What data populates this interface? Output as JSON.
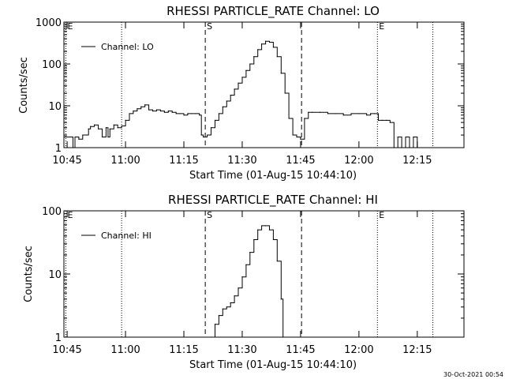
{
  "footer": {
    "timestamp": "30-Oct-2021 00:54"
  },
  "chart_data": [
    {
      "type": "line",
      "title": "RHESSI PARTICLE_RATE Channel: LO",
      "xlabel": "Start Time (01-Aug-15 10:44:10)",
      "ylabel": "Counts/sec",
      "y_scale": "log",
      "ylim": [
        1,
        1000
      ],
      "y_ticks": [
        1,
        10,
        100,
        1000
      ],
      "y_ticklabels": [
        "1",
        "10",
        "100",
        "1000"
      ],
      "xlim": [
        "10:44:10",
        "12:27:00"
      ],
      "x_ticks": [
        "10:45",
        "11:00",
        "11:15",
        "11:30",
        "11:45",
        "12:00",
        "12:15"
      ],
      "legend": {
        "label": "Channel: LO",
        "position": "top-left"
      },
      "markers": [
        {
          "label": "E",
          "time": "10:44:40",
          "style": "dotted"
        },
        {
          "label": "",
          "time": "10:59:00",
          "style": "dotted"
        },
        {
          "label": "S",
          "time": "11:20:30",
          "style": "dashed"
        },
        {
          "label": "",
          "time": "11:45:15",
          "style": "dashed"
        },
        {
          "label": "E",
          "time": "12:04:45",
          "style": "dotted"
        },
        {
          "label": "",
          "time": "12:19:00",
          "style": "dotted"
        }
      ],
      "series": [
        {
          "name": "Channel: LO",
          "x": [
            "10:44:10",
            "10:45:00",
            "10:46:00",
            "10:46:30",
            "10:47:00",
            "10:48:00",
            "10:49:00",
            "10:50:00",
            "10:50:30",
            "10:51:00",
            "10:52:00",
            "10:53:00",
            "10:54:00",
            "10:55:00",
            "10:55:30",
            "10:56:00",
            "10:57:00",
            "10:58:00",
            "10:59:00",
            "11:00:00",
            "11:01:00",
            "11:02:00",
            "11:03:00",
            "11:04:00",
            "11:05:00",
            "11:06:00",
            "11:07:00",
            "11:08:00",
            "11:09:00",
            "11:10:00",
            "11:11:00",
            "11:12:00",
            "11:13:00",
            "11:14:00",
            "11:15:00",
            "11:16:00",
            "11:17:00",
            "11:18:00",
            "11:19:00",
            "11:19:30",
            "11:20:00",
            "11:21:00",
            "11:22:00",
            "11:23:00",
            "11:24:00",
            "11:25:00",
            "11:26:00",
            "11:27:00",
            "11:28:00",
            "11:29:00",
            "11:30:00",
            "11:31:00",
            "11:32:00",
            "11:33:00",
            "11:34:00",
            "11:35:00",
            "11:36:00",
            "11:37:00",
            "11:38:00",
            "11:39:00",
            "11:40:00",
            "11:41:00",
            "11:42:00",
            "11:43:00",
            "11:44:00",
            "11:45:00",
            "11:46:00",
            "11:47:00",
            "11:48:00",
            "11:50:00",
            "11:52:00",
            "11:54:00",
            "11:56:00",
            "11:58:00",
            "12:00:00",
            "12:02:00",
            "12:03:00",
            "12:04:00",
            "12:05:00",
            "12:06:00",
            "12:07:00",
            "12:08:00",
            "12:09:00",
            "12:10:00",
            "12:11:00",
            "12:12:00",
            "12:13:00",
            "12:14:00",
            "12:15:00"
          ],
          "y": [
            1.8,
            1.8,
            1.8,
            1.0,
            1.8,
            1.6,
            2.0,
            2.0,
            2.8,
            3.2,
            3.5,
            2.8,
            1.8,
            3.0,
            1.8,
            2.8,
            3.5,
            3.0,
            3.3,
            4.5,
            6.5,
            7.5,
            8.5,
            9.5,
            10.5,
            8.0,
            7.5,
            8.0,
            7.5,
            7.0,
            7.5,
            7.0,
            6.5,
            6.5,
            6.0,
            6.5,
            6.5,
            6.5,
            6.0,
            2.0,
            1.8,
            2.0,
            3.0,
            4.5,
            6.5,
            9.5,
            13,
            18,
            25,
            35,
            48,
            70,
            100,
            150,
            220,
            300,
            350,
            330,
            250,
            150,
            60,
            20,
            5,
            2.0,
            1.8,
            1.6,
            5.0,
            7.0,
            7.0,
            7.0,
            6.5,
            6.5,
            6.0,
            6.5,
            6.5,
            6.0,
            6.5,
            6.5,
            4.5,
            4.5,
            4.5,
            4.0,
            1.0,
            1.8,
            1.0,
            1.8,
            1.0,
            1.8,
            1.0
          ]
        }
      ]
    },
    {
      "type": "line",
      "title": "RHESSI PARTICLE_RATE Channel: HI",
      "xlabel": "Start Time (01-Aug-15 10:44:10)",
      "ylabel": "Counts/sec",
      "y_scale": "log",
      "ylim": [
        1,
        100
      ],
      "y_ticks": [
        1,
        10,
        100
      ],
      "y_ticklabels": [
        "1",
        "10",
        "100"
      ],
      "xlim": [
        "10:44:10",
        "12:27:00"
      ],
      "x_ticks": [
        "10:45",
        "11:00",
        "11:15",
        "11:30",
        "11:45",
        "12:00",
        "12:15"
      ],
      "legend": {
        "label": "Channel: HI",
        "position": "top-left"
      },
      "markers": [
        {
          "label": "E",
          "time": "10:44:40",
          "style": "dotted"
        },
        {
          "label": "",
          "time": "10:59:00",
          "style": "dotted"
        },
        {
          "label": "S",
          "time": "11:20:30",
          "style": "dashed"
        },
        {
          "label": "",
          "time": "11:45:15",
          "style": "dashed"
        },
        {
          "label": "E",
          "time": "12:04:45",
          "style": "dotted"
        },
        {
          "label": "",
          "time": "12:19:00",
          "style": "dotted"
        }
      ],
      "series": [
        {
          "name": "Channel: HI",
          "x": [
            "11:22:00",
            "11:23:00",
            "11:24:00",
            "11:25:00",
            "11:26:00",
            "11:27:00",
            "11:28:00",
            "11:29:00",
            "11:30:00",
            "11:31:00",
            "11:32:00",
            "11:33:00",
            "11:34:00",
            "11:35:00",
            "11:36:00",
            "11:37:00",
            "11:38:00",
            "11:39:00",
            "11:40:00",
            "11:40:30"
          ],
          "y": [
            1.0,
            1.6,
            2.2,
            2.8,
            3.0,
            3.5,
            4.5,
            6.0,
            9.0,
            14,
            22,
            35,
            50,
            58,
            58,
            50,
            35,
            16,
            4,
            1.0
          ]
        }
      ]
    }
  ]
}
